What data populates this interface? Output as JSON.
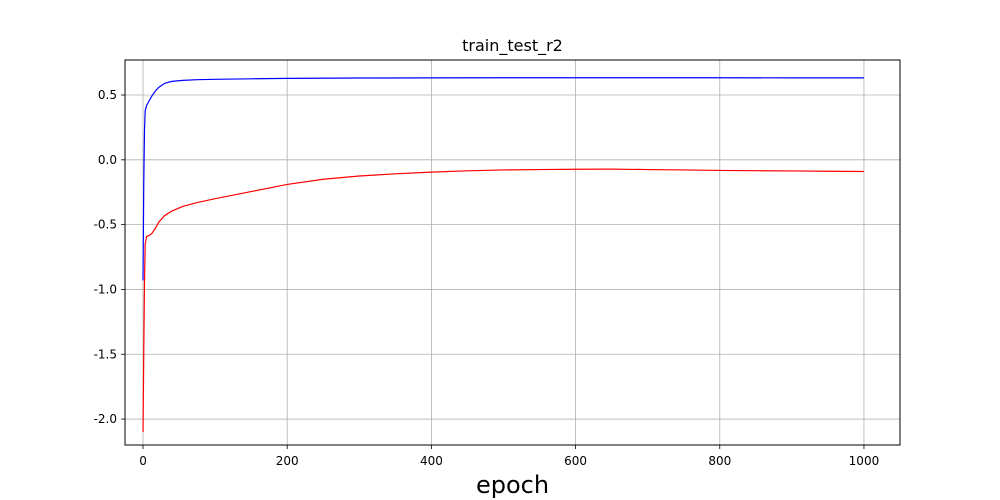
{
  "chart_data": {
    "type": "line",
    "title": "train_test_r2",
    "xlabel": "epoch",
    "ylabel": "",
    "xlim": [
      -25,
      1050
    ],
    "ylim": [
      -2.2,
      0.77
    ],
    "grid": true,
    "legend": "none",
    "x_ticks": [
      0,
      200,
      400,
      600,
      800,
      1000
    ],
    "y_ticks": [
      -2.0,
      -1.5,
      -1.0,
      -0.5,
      0.0,
      0.5
    ],
    "x_tick_labels": [
      "0",
      "200",
      "400",
      "600",
      "800",
      "1000"
    ],
    "y_tick_labels": [
      "-2.0",
      "-1.5",
      "-1.0",
      "-0.5",
      "0.0",
      "0.5"
    ],
    "series": [
      {
        "color": "#0000ff",
        "x": [
          0,
          1,
          2,
          3,
          5,
          8,
          12,
          17,
          22,
          30,
          40,
          55,
          75,
          100,
          150,
          200,
          300,
          400,
          500,
          600,
          700,
          800,
          900,
          1000
        ],
        "y": [
          -0.93,
          -0.2,
          0.22,
          0.38,
          0.42,
          0.45,
          0.49,
          0.53,
          0.56,
          0.59,
          0.605,
          0.613,
          0.618,
          0.621,
          0.625,
          0.628,
          0.631,
          0.632,
          0.633,
          0.633,
          0.633,
          0.633,
          0.632,
          0.632
        ]
      },
      {
        "color": "#ff0000",
        "x": [
          0,
          1,
          2,
          3,
          5,
          8,
          12,
          17,
          22,
          30,
          40,
          55,
          75,
          100,
          150,
          200,
          250,
          300,
          350,
          400,
          450,
          500,
          550,
          600,
          650,
          700,
          750,
          800,
          850,
          900,
          950,
          1000
        ],
        "y": [
          -2.1,
          -1.5,
          -0.95,
          -0.65,
          -0.59,
          -0.585,
          -0.57,
          -0.53,
          -0.48,
          -0.43,
          -0.395,
          -0.36,
          -0.33,
          -0.3,
          -0.245,
          -0.19,
          -0.15,
          -0.125,
          -0.108,
          -0.095,
          -0.085,
          -0.078,
          -0.075,
          -0.073,
          -0.072,
          -0.075,
          -0.078,
          -0.082,
          -0.084,
          -0.086,
          -0.088,
          -0.09
        ]
      }
    ]
  }
}
